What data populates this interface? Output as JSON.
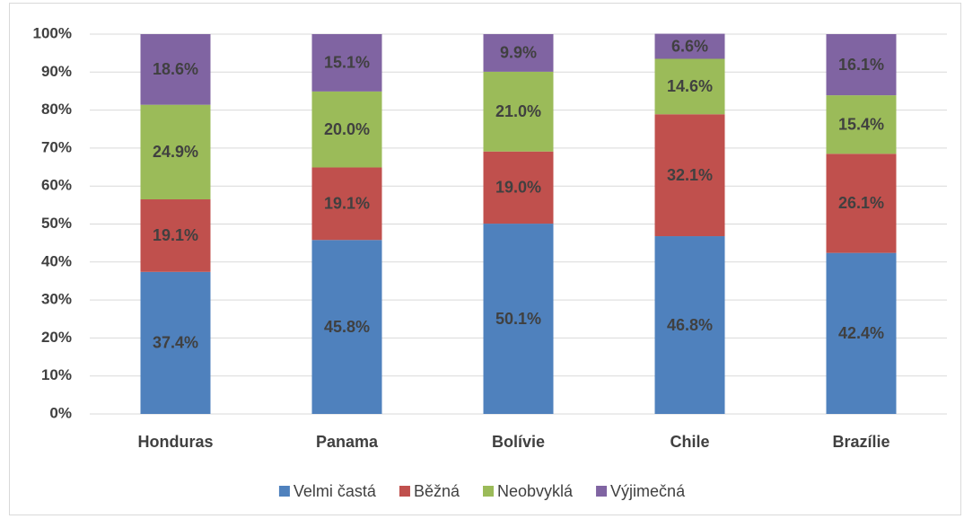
{
  "chart_data": {
    "type": "stacked_bar",
    "categories": [
      "Honduras",
      "Panama",
      "Bolívie",
      "Chile",
      "Brazílie"
    ],
    "series": [
      {
        "name": "Velmi častá",
        "color": "#4f81bd",
        "values": [
          37.4,
          45.8,
          50.1,
          46.8,
          42.4
        ],
        "value_labels": [
          "37.4%",
          "45.8%",
          "50.1%",
          "46.8%",
          "42.4%"
        ]
      },
      {
        "name": "Běžná",
        "color": "#c0504d",
        "values": [
          19.1,
          19.1,
          19.0,
          32.1,
          26.1
        ],
        "value_labels": [
          "19.1%",
          "19.1%",
          "19.0%",
          "32.1%",
          "26.1%"
        ]
      },
      {
        "name": "Neobvyklá",
        "color": "#9bbb59",
        "values": [
          24.9,
          20.0,
          21.0,
          14.6,
          15.4
        ],
        "value_labels": [
          "24.9%",
          "20.0%",
          "21.0%",
          "14.6%",
          "15.4%"
        ]
      },
      {
        "name": "Výjimečná",
        "color": "#8064a2",
        "values": [
          18.6,
          15.1,
          9.9,
          6.6,
          16.1
        ],
        "value_labels": [
          "18.6%",
          "15.1%",
          "9.9%",
          "6.6%",
          "16.1%"
        ]
      }
    ],
    "ylim": [
      0,
      100
    ],
    "yticks": [
      {
        "value": 0,
        "label": "0%"
      },
      {
        "value": 10,
        "label": "10%"
      },
      {
        "value": 20,
        "label": "20%"
      },
      {
        "value": 30,
        "label": "30%"
      },
      {
        "value": 40,
        "label": "40%"
      },
      {
        "value": 50,
        "label": "50%"
      },
      {
        "value": 60,
        "label": "60%"
      },
      {
        "value": 70,
        "label": "70%"
      },
      {
        "value": 80,
        "label": "80%"
      },
      {
        "value": 90,
        "label": "90%"
      },
      {
        "value": 100,
        "label": "100%"
      }
    ],
    "grid": true,
    "legend": "bottom"
  }
}
